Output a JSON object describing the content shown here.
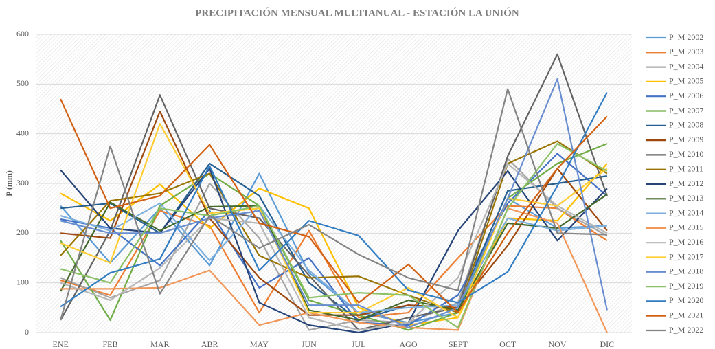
{
  "chart_data": {
    "type": "line",
    "title": "PRECIPITACIÓN MENSUAL MULTIANUAL - ESTACIÓN LA UNIÓN",
    "y_label": "P (mm)",
    "categories": [
      "ENE",
      "FEB",
      "MAR",
      "ABR",
      "MAY",
      "JUN",
      "JUL",
      "AGO",
      "SEPT",
      "OCT",
      "NOV",
      "DIC"
    ],
    "ylim": [
      0,
      600
    ],
    "yticks": [
      0,
      100,
      200,
      300,
      400,
      500,
      600
    ],
    "grid": true,
    "legend": "right",
    "series": [
      {
        "name": "P_M 2002",
        "color": "#5B9BD5",
        "values": [
          255,
          140,
          250,
          135,
          320,
          120,
          40,
          20,
          40,
          270,
          210,
          215
        ]
      },
      {
        "name": "P_M 2003",
        "color": "#ED7D31",
        "values": [
          105,
          75,
          245,
          215,
          40,
          205,
          30,
          40,
          150,
          255,
          250,
          185
        ]
      },
      {
        "name": "P_M 2004",
        "color": "#A5A5A5",
        "values": [
          110,
          70,
          105,
          300,
          190,
          5,
          25,
          20,
          60,
          350,
          250,
          195
        ]
      },
      {
        "name": "P_M 2005",
        "color": "#FFC000",
        "values": [
          280,
          225,
          298,
          210,
          290,
          250,
          50,
          15,
          30,
          230,
          225,
          340
        ]
      },
      {
        "name": "P_M 2006",
        "color": "#4472C4",
        "values": [
          228,
          210,
          135,
          245,
          90,
          150,
          20,
          15,
          75,
          260,
          360,
          275
        ]
      },
      {
        "name": "P_M 2007",
        "color": "#70AD47",
        "values": [
          185,
          25,
          255,
          320,
          255,
          65,
          35,
          5,
          40,
          270,
          340,
          380
        ]
      },
      {
        "name": "P_M 2008",
        "color": "#255E91",
        "values": [
          250,
          260,
          200,
          340,
          275,
          100,
          25,
          55,
          50,
          285,
          300,
          315
        ]
      },
      {
        "name": "P_M 2009",
        "color": "#9E480E",
        "values": [
          200,
          190,
          445,
          230,
          110,
          35,
          35,
          55,
          50,
          175,
          330,
          205
        ]
      },
      {
        "name": "P_M 2010",
        "color": "#636363",
        "values": [
          25,
          205,
          478,
          250,
          230,
          115,
          5,
          30,
          50,
          355,
          560,
          275
        ]
      },
      {
        "name": "P_M 2011",
        "color": "#997300",
        "values": [
          155,
          265,
          280,
          320,
          155,
          110,
          113,
          75,
          40,
          340,
          385,
          320
        ]
      },
      {
        "name": "P_M 2012",
        "color": "#264478",
        "values": [
          327,
          210,
          200,
          330,
          60,
          15,
          0,
          20,
          205,
          325,
          185,
          290
        ]
      },
      {
        "name": "P_M 2013",
        "color": "#43682B",
        "values": [
          83,
          262,
          205,
          253,
          255,
          45,
          25,
          65,
          45,
          220,
          210,
          278
        ]
      },
      {
        "name": "P_M 2014",
        "color": "#7CAFDD",
        "values": [
          235,
          205,
          260,
          145,
          255,
          125,
          40,
          50,
          55,
          230,
          205,
          215
        ]
      },
      {
        "name": "P_M 2015",
        "color": "#F1975A",
        "values": [
          88,
          88,
          90,
          125,
          15,
          40,
          20,
          10,
          5,
          250,
          220,
          0
        ]
      },
      {
        "name": "P_M 2016",
        "color": "#B7B7B7",
        "values": [
          100,
          65,
          130,
          230,
          220,
          30,
          5,
          20,
          110,
          340,
          255,
          200
        ]
      },
      {
        "name": "P_M 2017",
        "color": "#FFCD33",
        "values": [
          180,
          140,
          420,
          240,
          250,
          40,
          40,
          90,
          30,
          270,
          255,
          330
        ]
      },
      {
        "name": "P_M 2018",
        "color": "#698ED0",
        "values": [
          225,
          200,
          200,
          230,
          245,
          55,
          55,
          10,
          50,
          270,
          510,
          45
        ]
      },
      {
        "name": "P_M 2019",
        "color": "#8CC168",
        "values": [
          128,
          100,
          250,
          235,
          255,
          70,
          80,
          75,
          10,
          250,
          380,
          325
        ]
      },
      {
        "name": "P_M 2020",
        "color": "#327DC2",
        "values": [
          52,
          120,
          148,
          335,
          125,
          225,
          195,
          85,
          60,
          122,
          295,
          483
        ]
      },
      {
        "name": "P_M 2021",
        "color": "#D26012",
        "values": [
          470,
          250,
          275,
          378,
          220,
          193,
          60,
          137,
          40,
          200,
          330,
          435
        ]
      },
      {
        "name": "P_M 2022",
        "color": "#848484",
        "values": [
          25,
          375,
          78,
          235,
          170,
          217,
          157,
          110,
          85,
          490,
          200,
          197
        ]
      }
    ]
  }
}
